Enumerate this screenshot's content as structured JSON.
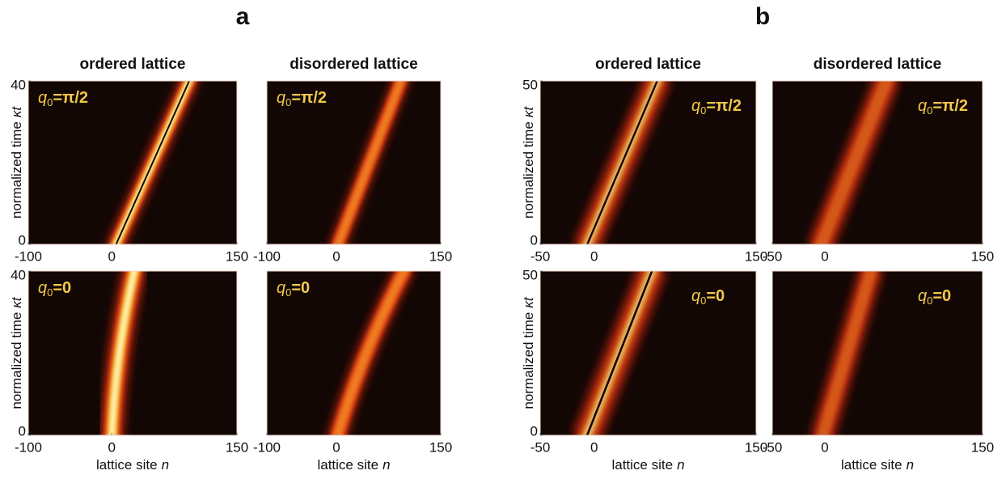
{
  "figure": {
    "groups": [
      {
        "letter": "a",
        "column_titles": [
          "ordered lattice",
          "disordered lattice"
        ],
        "y_label": {
          "text": "normalized time",
          "variable": "κt"
        },
        "x_label": {
          "text": "lattice site",
          "variable": "n"
        },
        "xlim": [
          -100,
          150
        ],
        "xticks": [
          -100,
          0,
          150
        ],
        "ylim": [
          0,
          40
        ],
        "yticks": [
          0,
          40
        ],
        "row_labels": [
          {
            "symbol": "q",
            "subscript": "0",
            "rest": "=π/2"
          },
          {
            "symbol": "q",
            "subscript": "0",
            "rest": "=0"
          }
        ]
      },
      {
        "letter": "b",
        "column_titles": [
          "ordered lattice",
          "disordered lattice"
        ],
        "y_label": {
          "text": "normalized time",
          "variable": "κt"
        },
        "x_label": {
          "text": "lattice site",
          "variable": "n"
        },
        "xlim": [
          -50,
          150
        ],
        "xticks": [
          -50,
          0,
          150
        ],
        "ylim": [
          0,
          50
        ],
        "yticks": [
          0,
          50
        ],
        "row_labels": [
          {
            "symbol": "q",
            "subscript": "0",
            "rest": "=π/2"
          },
          {
            "symbol": "q",
            "subscript": "0",
            "rest": "=0"
          }
        ]
      }
    ]
  }
}
